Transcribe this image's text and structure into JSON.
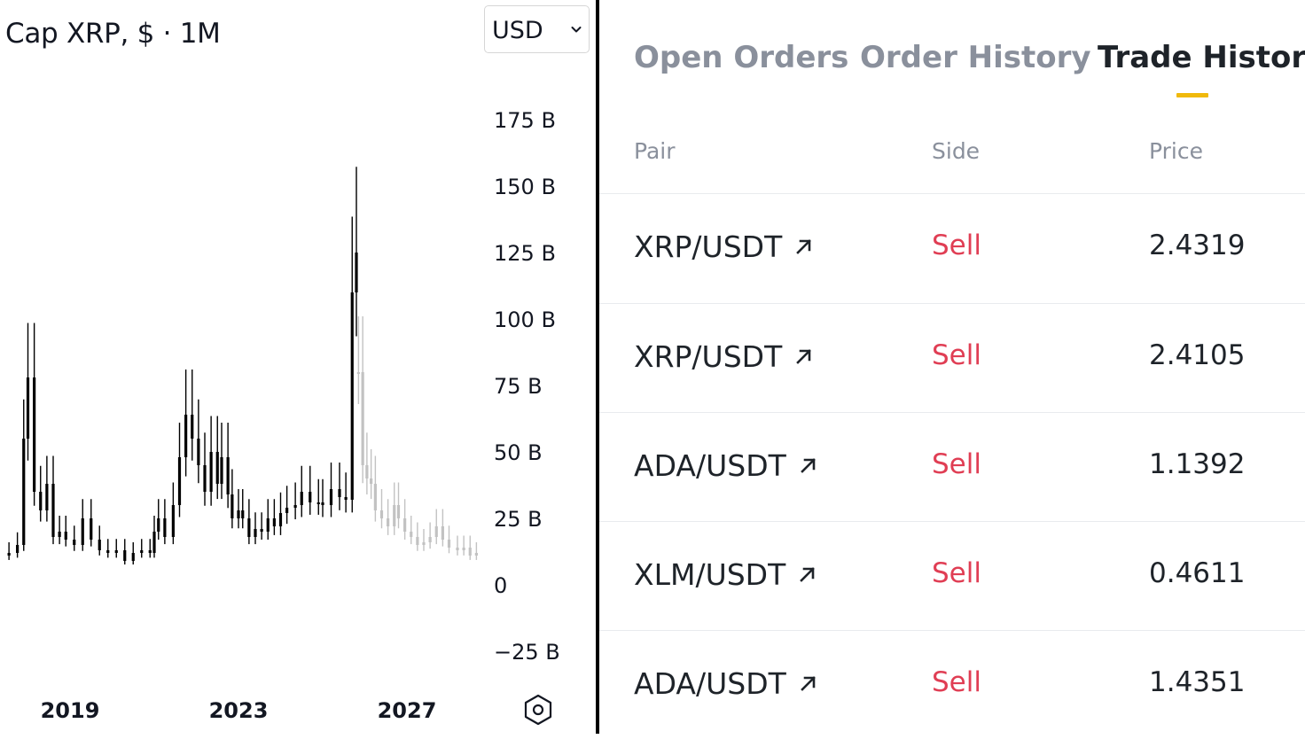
{
  "chart": {
    "title": "Cap XRP, $ · 1M",
    "currency": "USD",
    "settings_icon": "settings-hexagon-icon"
  },
  "chart_data": {
    "type": "candlestick",
    "title": "Cap XRP, $ · 1M",
    "yticks": [
      "175 B",
      "150 B",
      "125 B",
      "100 B",
      "75 B",
      "50 B",
      "25 B",
      "0",
      "−25 B"
    ],
    "ytick_values": [
      175,
      150,
      125,
      100,
      75,
      50,
      25,
      0,
      -25
    ],
    "xticks": [
      "2019",
      "2023",
      "2027"
    ],
    "ylim": [
      -25,
      175
    ],
    "unit": "B USD",
    "series": [
      {
        "style": "solid",
        "color": "#000000",
        "points": [
          [
            2017.0,
            10
          ],
          [
            2017.3,
            11
          ],
          [
            2017.55,
            12
          ],
          [
            2017.75,
            15
          ],
          [
            2017.9,
            55
          ],
          [
            2018.0,
            78
          ],
          [
            2018.15,
            35
          ],
          [
            2018.3,
            28
          ],
          [
            2018.45,
            38
          ],
          [
            2018.6,
            18
          ],
          [
            2018.75,
            20
          ],
          [
            2018.9,
            17
          ],
          [
            2019.1,
            15
          ],
          [
            2019.3,
            25
          ],
          [
            2019.5,
            17
          ],
          [
            2019.7,
            13
          ],
          [
            2019.9,
            12
          ],
          [
            2020.1,
            13
          ],
          [
            2020.3,
            9
          ],
          [
            2020.5,
            12
          ],
          [
            2020.7,
            13
          ],
          [
            2020.9,
            12
          ],
          [
            2021.0,
            20
          ],
          [
            2021.1,
            25
          ],
          [
            2021.25,
            18
          ],
          [
            2021.45,
            30
          ],
          [
            2021.6,
            48
          ],
          [
            2021.75,
            64
          ],
          [
            2021.9,
            55
          ],
          [
            2022.05,
            45
          ],
          [
            2022.2,
            35
          ],
          [
            2022.35,
            50
          ],
          [
            2022.5,
            38
          ],
          [
            2022.6,
            48
          ],
          [
            2022.75,
            34
          ],
          [
            2022.85,
            25
          ],
          [
            2023.0,
            28
          ],
          [
            2023.1,
            25
          ],
          [
            2023.25,
            18
          ],
          [
            2023.4,
            21
          ],
          [
            2023.55,
            20
          ],
          [
            2023.7,
            25
          ],
          [
            2023.85,
            22
          ],
          [
            2024.0,
            27
          ],
          [
            2024.15,
            29
          ],
          [
            2024.35,
            30
          ],
          [
            2024.5,
            35
          ],
          [
            2024.7,
            31
          ],
          [
            2024.9,
            31
          ],
          [
            2025.0,
            30
          ],
          [
            2025.2,
            36
          ],
          [
            2025.4,
            33
          ],
          [
            2025.55,
            32
          ],
          [
            2025.7,
            110
          ],
          [
            2025.8,
            125
          ]
        ]
      },
      {
        "style": "faded",
        "color": "#c2c2c2",
        "points": [
          [
            2025.85,
            80
          ],
          [
            2025.95,
            45
          ],
          [
            2026.05,
            40
          ],
          [
            2026.15,
            38
          ],
          [
            2026.25,
            28
          ],
          [
            2026.4,
            25
          ],
          [
            2026.55,
            22
          ],
          [
            2026.7,
            30
          ],
          [
            2026.8,
            25
          ],
          [
            2026.95,
            20
          ],
          [
            2027.1,
            18
          ],
          [
            2027.25,
            15
          ],
          [
            2027.4,
            16
          ],
          [
            2027.55,
            18
          ],
          [
            2027.7,
            22
          ],
          [
            2027.85,
            17
          ],
          [
            2028.0,
            14
          ],
          [
            2028.2,
            13
          ],
          [
            2028.35,
            14
          ],
          [
            2028.5,
            11
          ],
          [
            2028.65,
            12
          ],
          [
            2028.8,
            10
          ],
          [
            2028.95,
            12
          ]
        ]
      }
    ]
  },
  "tabs": [
    {
      "label": "Open Orders",
      "active": false
    },
    {
      "label": "Order History",
      "active": false
    },
    {
      "label": "Trade History",
      "active": true
    }
  ],
  "columns": {
    "pair": "Pair",
    "side": "Side",
    "price": "Price"
  },
  "trades": [
    {
      "pair": "XRP/USDT",
      "side": "Sell",
      "price": "2.4319"
    },
    {
      "pair": "XRP/USDT",
      "side": "Sell",
      "price": "2.4105"
    },
    {
      "pair": "ADA/USDT",
      "side": "Sell",
      "price": "1.1392"
    },
    {
      "pair": "XLM/USDT",
      "side": "Sell",
      "price": "0.4611"
    },
    {
      "pair": "ADA/USDT",
      "side": "Sell",
      "price": "1.4351"
    }
  ],
  "icons": {
    "pair_link": "external-arrow-icon"
  },
  "colors": {
    "sell": "#e03e54",
    "tab_indicator": "#f0b90b"
  }
}
